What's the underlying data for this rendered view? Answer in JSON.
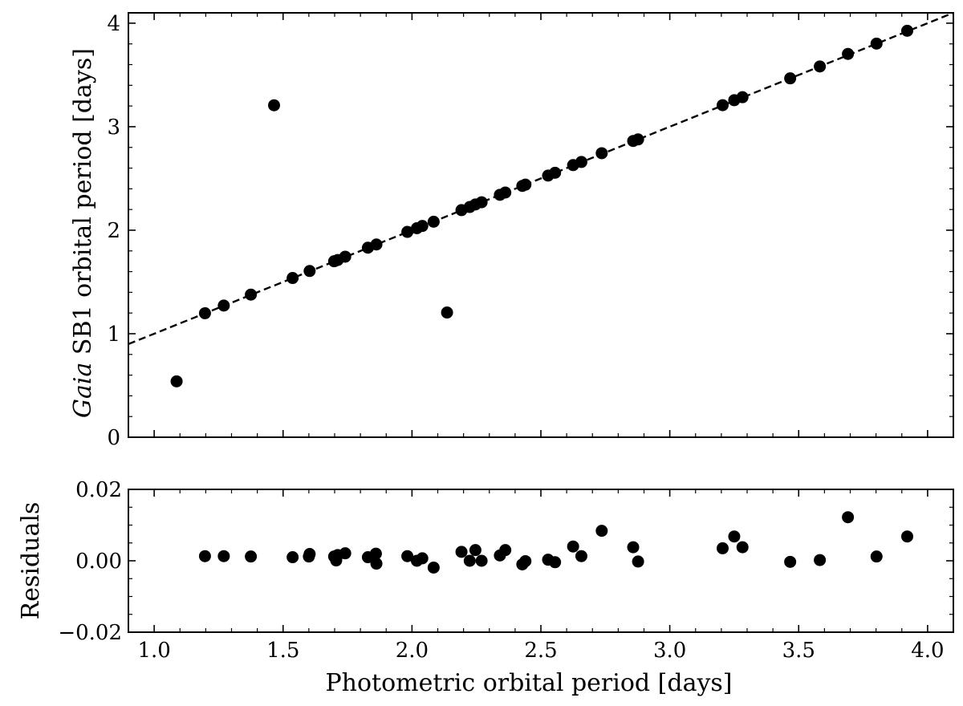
{
  "chart_data": [
    {
      "panel": "main",
      "type": "scatter",
      "xlabel": "",
      "ylabel_italic": "Gaia",
      "ylabel_rest": " SB1 orbital period [days]",
      "xlim": [
        0.9,
        4.1
      ],
      "ylim": [
        0,
        4.1
      ],
      "xticks": [
        1.0,
        1.5,
        2.0,
        2.5,
        3.0,
        3.5,
        4.0
      ],
      "yticks": [
        0,
        1,
        2,
        3,
        4
      ],
      "ytick_labels": [
        "0",
        "1",
        "2",
        "3",
        "4"
      ],
      "fit_line": {
        "slope": 1.0,
        "intercept": 0.0,
        "style": "dashed"
      },
      "series": [
        {
          "x": [
            1.087,
            1.197,
            1.27,
            1.375,
            1.465,
            1.537,
            1.603,
            1.698,
            1.712,
            1.741,
            1.829,
            1.862,
            1.982,
            2.019,
            2.04,
            2.084,
            2.136,
            2.192,
            2.224,
            2.246,
            2.27,
            2.341,
            2.362,
            2.428,
            2.44,
            2.528,
            2.555,
            2.625,
            2.657,
            2.736,
            2.858,
            2.877,
            3.205,
            3.25,
            3.282,
            3.467,
            3.582,
            3.691,
            3.802,
            3.921
          ],
          "y": [
            0.54,
            1.198,
            1.272,
            1.378,
            3.207,
            1.538,
            1.606,
            1.7,
            1.712,
            1.744,
            1.831,
            1.862,
            1.984,
            2.019,
            2.041,
            2.082,
            1.205,
            2.194,
            2.224,
            2.249,
            2.27,
            2.342,
            2.364,
            2.428,
            2.44,
            2.528,
            2.555,
            2.629,
            2.659,
            2.744,
            2.862,
            2.877,
            3.208,
            3.256,
            3.285,
            3.467,
            3.582,
            3.703,
            3.803,
            3.927
          ]
        }
      ]
    },
    {
      "panel": "residuals",
      "type": "scatter",
      "xlabel": "Photometric orbital period [days]",
      "ylabel": "Residuals",
      "xlim": [
        0.9,
        4.1
      ],
      "ylim": [
        -0.02,
        0.02
      ],
      "xticks": [
        1.0,
        1.5,
        2.0,
        2.5,
        3.0,
        3.5,
        4.0
      ],
      "xtick_labels": [
        "1.0",
        "1.5",
        "2.0",
        "2.5",
        "3.0",
        "3.5",
        "4.0"
      ],
      "yticks": [
        -0.02,
        0.0,
        0.02
      ],
      "ytick_labels": [
        "−0.02",
        "0.00",
        "0.02"
      ],
      "series": [
        {
          "x": [
            1.197,
            1.27,
            1.375,
            1.537,
            1.6,
            1.603,
            1.698,
            1.706,
            1.712,
            1.741,
            1.829,
            1.86,
            1.862,
            1.982,
            2.019,
            2.04,
            2.084,
            2.192,
            2.224,
            2.246,
            2.27,
            2.341,
            2.362,
            2.428,
            2.44,
            2.528,
            2.555,
            2.625,
            2.657,
            2.736,
            2.858,
            2.877,
            3.205,
            3.25,
            3.282,
            3.467,
            3.582,
            3.691,
            3.802,
            3.921
          ],
          "y": [
            0.0013,
            0.0013,
            0.0012,
            0.001,
            0.0012,
            0.0019,
            0.0012,
            0.0001,
            0.0016,
            0.0021,
            0.001,
            0.002,
            -0.0008,
            0.0013,
            0.0,
            0.0007,
            -0.0019,
            0.0025,
            0.0,
            0.003,
            0.0,
            0.0015,
            0.003,
            -0.001,
            -0.0001,
            0.0003,
            -0.0004,
            0.004,
            0.0013,
            0.0084,
            0.0038,
            -0.0002,
            0.0035,
            0.0068,
            0.0038,
            -0.0003,
            0.0002,
            0.0122,
            0.0012,
            0.0068
          ]
        }
      ]
    }
  ]
}
